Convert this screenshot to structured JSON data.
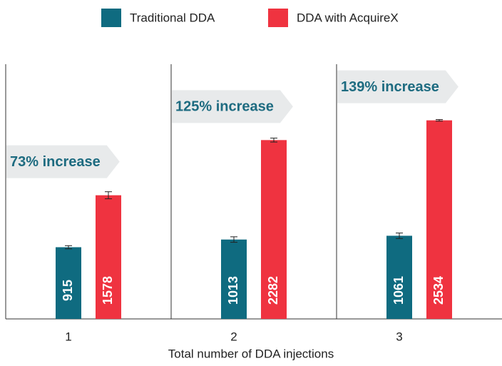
{
  "chart_data": {
    "type": "bar",
    "x_label": "Total number of DDA injections",
    "categories": [
      "1",
      "2",
      "3"
    ],
    "series": [
      {
        "name": "Traditional DDA",
        "color": "#0f6b80",
        "values": [
          915,
          1013,
          1061
        ],
        "errors": [
          20,
          35,
          35
        ]
      },
      {
        "name": "DDA with AcquireX",
        "color": "#ef3340",
        "values": [
          1578,
          2282,
          2534
        ],
        "errors": [
          45,
          25,
          10
        ]
      }
    ],
    "annotations": [
      "73% increase",
      "125% increase",
      "139% increase"
    ],
    "ylim": [
      0,
      3250
    ]
  }
}
